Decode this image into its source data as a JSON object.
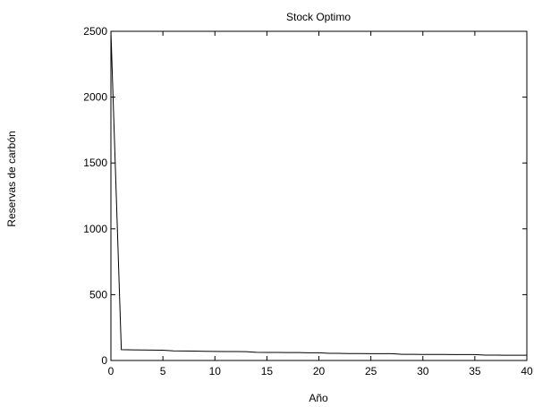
{
  "chart_data": {
    "type": "line",
    "title": "Stock Optimo",
    "xlabel": "Año",
    "ylabel": "Reservas de carbón",
    "xlim": [
      0,
      40
    ],
    "ylim": [
      0,
      2500
    ],
    "xticks": [
      0,
      5,
      10,
      15,
      20,
      25,
      30,
      35,
      40
    ],
    "yticks": [
      0,
      500,
      1000,
      1500,
      2000,
      2500
    ],
    "grid": false,
    "series": [
      {
        "color": "#000000",
        "x": [
          0,
          1,
          2,
          3,
          4,
          5,
          6,
          7,
          8,
          9,
          10,
          11,
          12,
          13,
          14,
          15,
          16,
          17,
          18,
          19,
          20,
          21,
          22,
          23,
          24,
          25,
          26,
          27,
          28,
          29,
          30,
          31,
          32,
          33,
          34,
          35,
          36,
          37,
          38,
          39,
          40
        ],
        "y": [
          2500,
          82,
          81,
          80,
          79,
          78,
          73,
          72,
          71,
          70,
          69,
          68,
          68,
          67,
          62,
          61,
          61,
          60,
          60,
          59,
          59,
          54,
          54,
          53,
          53,
          52,
          52,
          52,
          47,
          47,
          46,
          46,
          46,
          45,
          45,
          45,
          41,
          41,
          40,
          40,
          40
        ]
      }
    ]
  }
}
